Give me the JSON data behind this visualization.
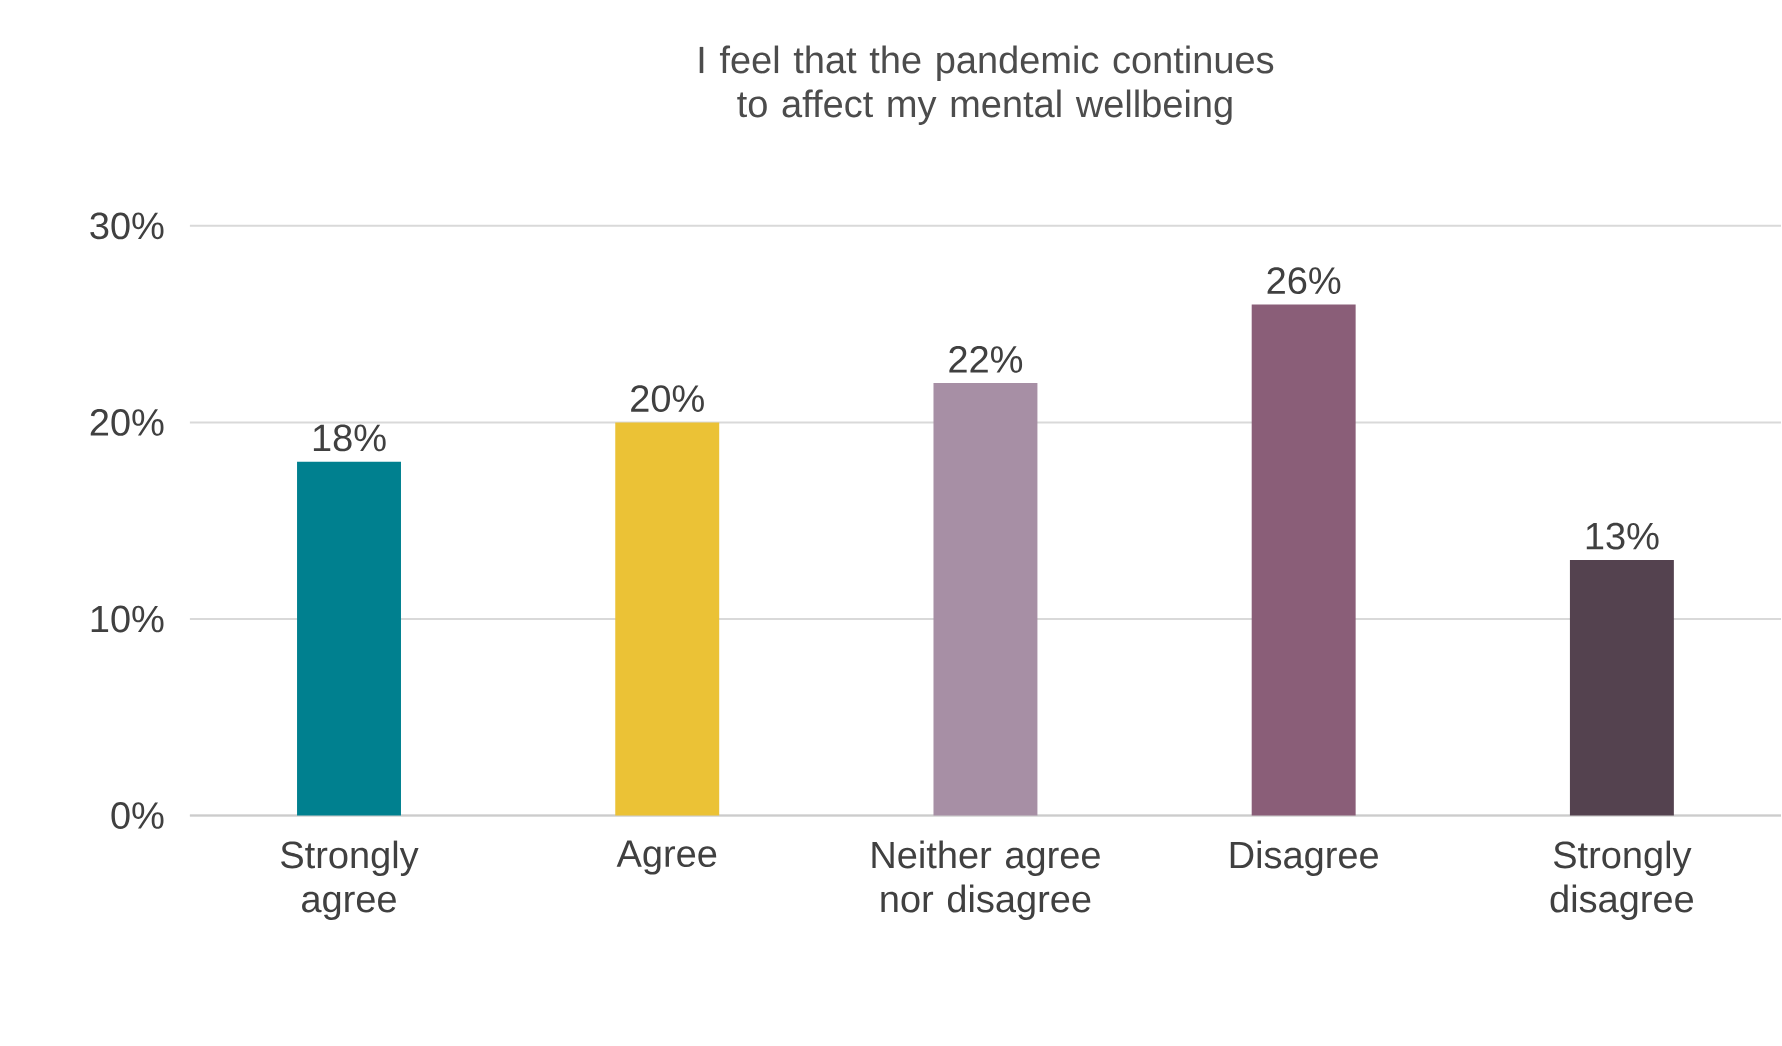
{
  "chart_data": {
    "type": "bar",
    "title": "I feel that the pandemic continues to affect my mental wellbeing",
    "categories": [
      "Strongly agree",
      "Agree",
      "Neither agree nor disagree",
      "Disagree",
      "Strongly disagree"
    ],
    "values": [
      18,
      20,
      22,
      26,
      13
    ],
    "value_labels": [
      "18%",
      "20%",
      "22%",
      "26%",
      "13%"
    ],
    "colors": [
      "#00808f",
      "#ebc236",
      "#a78fa5",
      "#8a5e78",
      "#54424f"
    ],
    "ylim": [
      0,
      30
    ],
    "yticks": [
      {
        "value": 0,
        "label": "0%"
      },
      {
        "value": 10,
        "label": "10%"
      },
      {
        "value": 20,
        "label": "20%"
      },
      {
        "value": 30,
        "label": "30%"
      }
    ],
    "grid": "y"
  }
}
